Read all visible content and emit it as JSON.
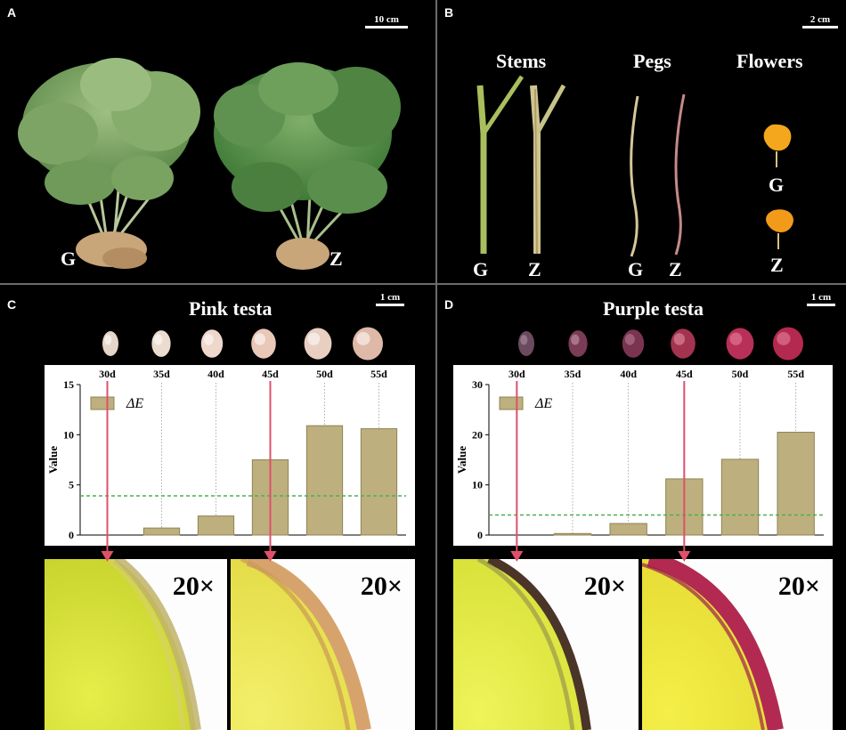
{
  "panels": {
    "A": {
      "letter": "A",
      "scale": "10 cm",
      "labels": [
        "G",
        "Z"
      ]
    },
    "B": {
      "letter": "B",
      "scale": "2 cm",
      "headers": [
        "Stems",
        "Pegs",
        "Flowers"
      ],
      "stem_labels": [
        "G",
        "Z"
      ],
      "peg_labels": [
        "G",
        "Z"
      ],
      "flower_labels": [
        "G",
        "Z"
      ]
    },
    "C": {
      "letter": "C",
      "title": "Pink testa",
      "scale": "1 cm",
      "magnification": "20×"
    },
    "D": {
      "letter": "D",
      "title": "Purple testa",
      "scale": "1 cm",
      "magnification": "20×"
    }
  },
  "colors": {
    "bar": "#bdb07e",
    "bar_stroke": "#8f8354",
    "threshold": "#4caf50",
    "arrow": "#e0506a",
    "pink_seed": "#e7cfc1",
    "purple_seed_dark": "#6e3550",
    "purple_seed_light": "#c23b62"
  },
  "chart_data": [
    {
      "type": "bar",
      "categories": [
        "30d",
        "35d",
        "40d",
        "45d",
        "50d",
        "55d"
      ],
      "series": [
        {
          "name": "ΔE",
          "values": [
            0,
            0.7,
            1.9,
            7.5,
            10.9,
            10.6
          ]
        }
      ],
      "ylabel": "Value",
      "ylim": [
        0,
        15
      ],
      "yticks": [
        0,
        5,
        10,
        15
      ],
      "threshold": 3.9,
      "arrows_at": [
        "30d",
        "45d"
      ],
      "legend": "top-left"
    },
    {
      "type": "bar",
      "categories": [
        "30d",
        "35d",
        "40d",
        "45d",
        "50d",
        "55d"
      ],
      "series": [
        {
          "name": "ΔE",
          "values": [
            0,
            0.3,
            2.3,
            11.2,
            15.1,
            20.5
          ]
        }
      ],
      "ylabel": "Value",
      "ylim": [
        0,
        30
      ],
      "yticks": [
        0,
        10,
        20,
        30
      ],
      "threshold": 4.0,
      "arrows_at": [
        "30d",
        "45d"
      ],
      "legend": "top-left"
    }
  ]
}
